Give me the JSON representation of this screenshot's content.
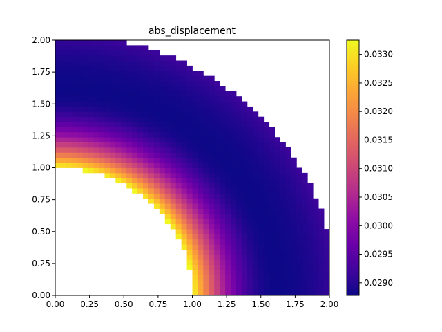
{
  "chart_data": {
    "type": "heatmap",
    "title": "abs_displacement",
    "xlabel": "",
    "ylabel": "",
    "xlim": [
      0,
      2
    ],
    "ylim": [
      0,
      2
    ],
    "xticks": [
      "0.00",
      "0.25",
      "0.50",
      "0.75",
      "1.00",
      "1.25",
      "1.50",
      "1.75",
      "2.00"
    ],
    "yticks": [
      "0.00",
      "0.25",
      "0.50",
      "0.75",
      "1.00",
      "1.25",
      "1.50",
      "1.75",
      "2.00"
    ],
    "grid": false,
    "colormap": "plasma",
    "colorbar": {
      "vmin": 0.02878,
      "vmax": 0.03325,
      "ticks": [
        "0.0290",
        "0.0295",
        "0.0300",
        "0.0305",
        "0.0310",
        "0.0315",
        "0.0320",
        "0.0325",
        "0.0330"
      ],
      "tick_values": [
        0.029,
        0.0295,
        0.03,
        0.0305,
        0.031,
        0.0315,
        0.032,
        0.0325,
        0.033
      ]
    },
    "field": {
      "description_of_domain": "quarter annulus: inner radius 1.0, outer radius ~2.05 (clipped to square 0..2)",
      "inner_radius": 1.0,
      "outer_radius": 2.05,
      "grid_n": 50,
      "value_at_inner_edge": 0.0333,
      "value_min": 0.02878,
      "value_min_radius": 1.62,
      "value_at_outer_edge": 0.0292
    }
  }
}
